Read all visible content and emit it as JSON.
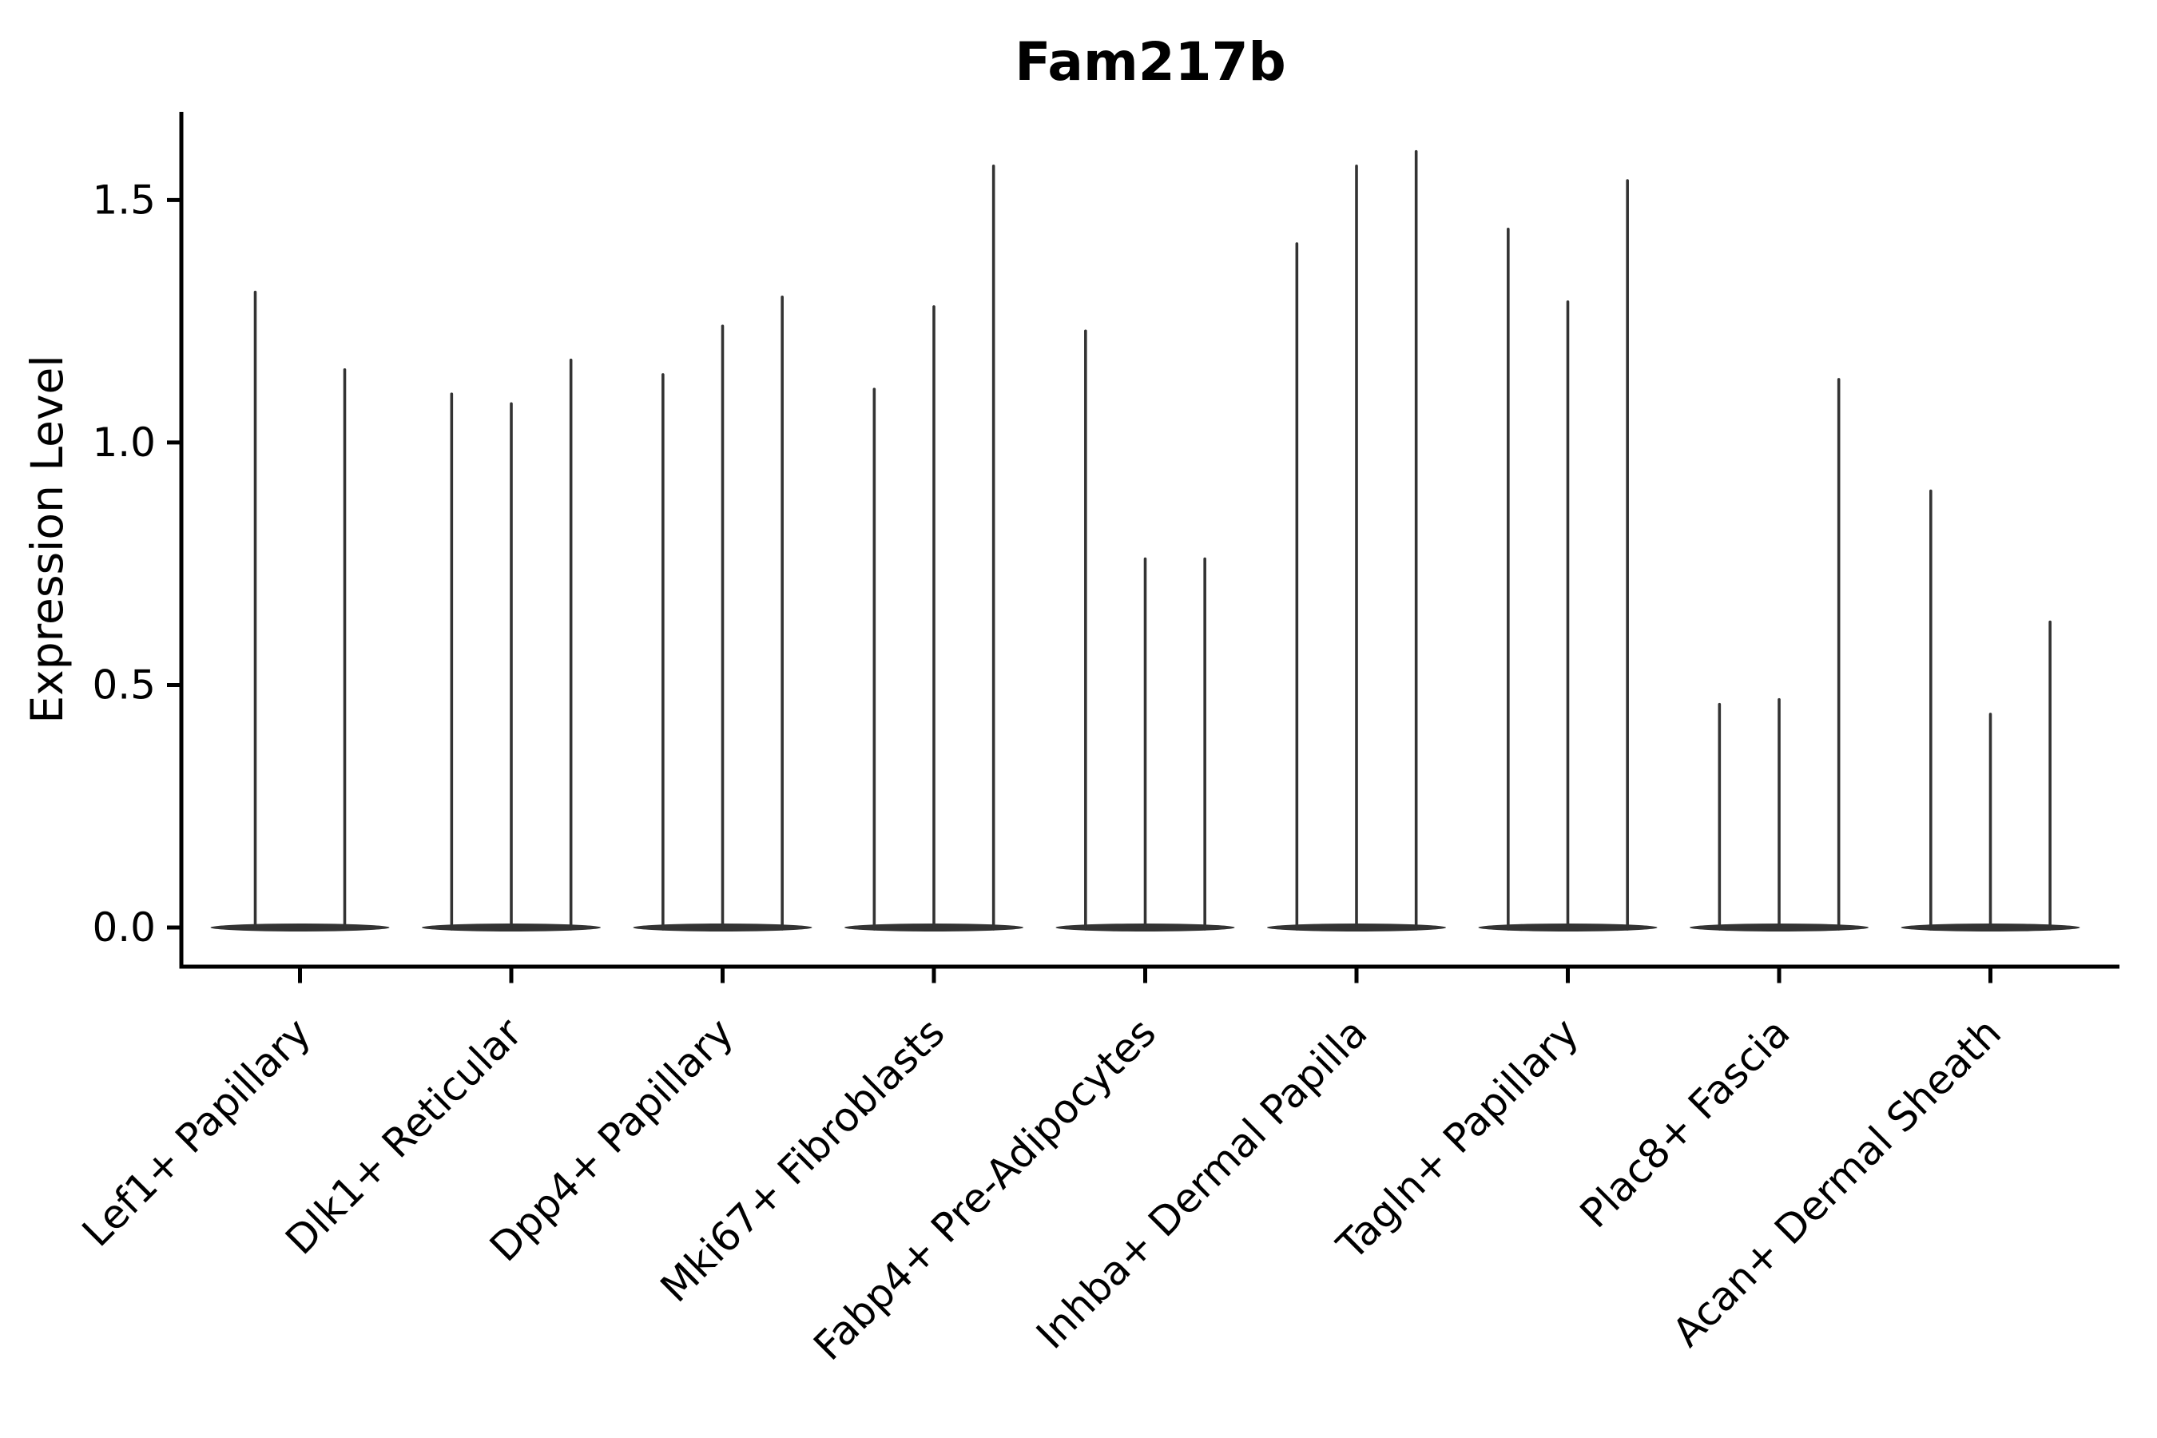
{
  "figure": {
    "background": "#ffffff"
  },
  "chart_data": {
    "type": "violin",
    "title": "Fam217b",
    "xlabel": "",
    "ylabel": "Expression Level",
    "ylim": [
      -0.08,
      1.68
    ],
    "ytick_values": [
      0.0,
      0.5,
      1.0,
      1.5
    ],
    "ytick_labels": [
      "0.0",
      "0.5",
      "1.0",
      "1.5"
    ],
    "grid": false,
    "legend": "none",
    "x_tick_rotation_deg": 45,
    "violin_shape_note": "each violin is flat at expression 0 (wide thin base lens) with a single thin vertical spike up to its maximum expression value",
    "categories": [
      "Lef1+ Papillary",
      "Dlk1+ Reticular",
      "Dpp4+ Papillary",
      "Mki67+ Fibroblasts",
      "Fabp4+ Pre-Adipocytes",
      "Inhba+ Dermal Papilla",
      "Tagln+ Papillary",
      "Plac8+ Fascia",
      "Acan+ Dermal Sheath"
    ],
    "groups": [
      {
        "category": "Lef1+ Papillary",
        "spike_maxima": [
          1.31,
          1.15
        ]
      },
      {
        "category": "Dlk1+ Reticular",
        "spike_maxima": [
          1.1,
          1.08,
          1.17
        ]
      },
      {
        "category": "Dpp4+ Papillary",
        "spike_maxima": [
          1.14,
          1.24,
          1.3
        ]
      },
      {
        "category": "Mki67+ Fibroblasts",
        "spike_maxima": [
          1.11,
          1.28,
          1.57
        ]
      },
      {
        "category": "Fabp4+ Pre-Adipocytes",
        "spike_maxima": [
          1.23,
          0.76,
          0.76
        ]
      },
      {
        "category": "Inhba+ Dermal Papilla",
        "spike_maxima": [
          1.41,
          1.57,
          1.6
        ]
      },
      {
        "category": "Tagln+ Papillary",
        "spike_maxima": [
          1.44,
          1.29,
          1.54
        ]
      },
      {
        "category": "Plac8+ Fascia",
        "spike_maxima": [
          0.46,
          0.47,
          1.13
        ]
      },
      {
        "category": "Acan+ Dermal Sheath",
        "spike_maxima": [
          0.9,
          0.44,
          0.63
        ]
      }
    ],
    "style": {
      "violin_color": "#333333",
      "axis_color": "#000000",
      "text_color": "#000000",
      "title_bold": true,
      "background": "#ffffff"
    }
  }
}
